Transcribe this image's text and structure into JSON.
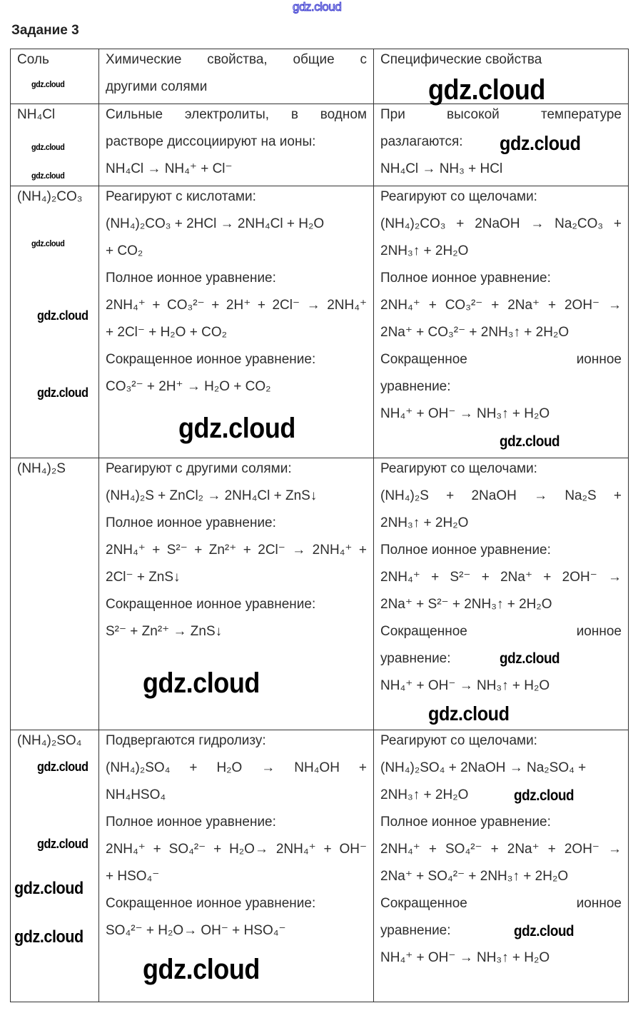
{
  "site_watermark": "gdz.cloud",
  "title": "Задание 3",
  "table": {
    "headers": [
      "Соль",
      "Химические свойства, общие с другими солями",
      "Специфические свойства"
    ],
    "header_lines": [
      [
        "Соль"
      ],
      [
        "Химические свойства, общие с",
        "другими солями"
      ],
      [
        "Специфические свойства"
      ]
    ],
    "rows": [
      {
        "salt": "NH₄Cl",
        "common": [
          "Сильные электролиты, в водном",
          "растворе диссоциируют на ионы:",
          "NH₄Cl → NH₄⁺ + Cl⁻"
        ],
        "specific": [
          "При высокой температуре",
          "разлагаются:",
          "NH₄Cl → NH₃ + HCl"
        ]
      },
      {
        "salt": "(NH₄)₂CO₃",
        "common": [
          "Реагируют с кислотами:",
          "(NH₄)₂CO₃ + 2HCl → 2NH₄Cl + H₂O",
          "+ CO₂",
          "Полное ионное уравнение:",
          "2NH₄⁺ + CO₃²⁻ + 2H⁺ + 2Cl⁻ → 2NH₄⁺",
          "+ 2Cl⁻ + H₂O + CO₂",
          "Сокращенное ионное уравнение:",
          "CO₃²⁻ + 2H⁺ → H₂O + CO₂"
        ],
        "specific": [
          "Реагируют со щелочами:",
          "(NH₄)₂CO₃ + 2NaOH → Na₂CO₃ +",
          "2NH₃↑ + 2H₂O",
          "Полное ионное уравнение:",
          "2NH₄⁺ + CO₃²⁻ + 2Na⁺ + 2OH⁻ →",
          "2Na⁺ + CO₃²⁻ + 2NH₃↑ + 2H₂O",
          "Сокращенное ионное",
          "уравнение:",
          "NH₄⁺ + OH⁻ → NH₃↑ + H₂O"
        ]
      },
      {
        "salt": "(NH₄)₂S",
        "common": [
          "Реагируют с другими солями:",
          "(NH₄)₂S + ZnCl₂ → 2NH₄Cl + ZnS↓",
          "Полное ионное уравнение:",
          "2NH₄⁺ + S²⁻ + Zn²⁺ + 2Cl⁻ → 2NH₄⁺ +",
          "2Cl⁻ + ZnS↓",
          "Сокращенное ионное уравнение:",
          "S²⁻ + Zn²⁺ → ZnS↓"
        ],
        "specific": [
          "Реагируют со щелочами:",
          "(NH₄)₂S + 2NaOH → Na₂S +",
          "2NH₃↑ + 2H₂O",
          "Полное ионное уравнение:",
          "2NH₄⁺ + S²⁻ + 2Na⁺ + 2OH⁻ →",
          "2Na⁺ + S²⁻ + 2NH₃↑ + 2H₂O",
          "Сокращенное ионное",
          "уравнение:",
          "NH₄⁺ + OH⁻ → NH₃↑ + H₂O"
        ]
      },
      {
        "salt": "(NH₄)₂SO₄",
        "common": [
          "Подвергаются гидролизу:",
          "(NH₄)₂SO₄ + H₂O → NH₄OH +",
          "NH₄HSO₄",
          "Полное ионное уравнение:",
          "2NH₄⁺ + SO₄²⁻ + H₂O→ 2NH₄⁺ + OH⁻",
          "+ HSO₄⁻",
          "Сокращенное ионное уравнение:",
          "SO₄²⁻ + H₂O→ OH⁻ + HSO₄⁻"
        ],
        "specific": [
          "Реагируют со щелочами:",
          "(NH₄)₂SO₄ + 2NaOH → Na₂SO₄ +",
          "2NH₃↑ + 2H₂O",
          "Полное ионное уравнение:",
          "2NH₄⁺ + SO₄²⁻ + 2Na⁺ + 2OH⁻ →",
          "2Na⁺ + SO₄²⁻ + 2NH₃↑ + 2H₂O",
          "Сокращенное ионное",
          "уравнение:",
          "NH₄⁺ + OH⁻ → NH₃↑ + H₂O"
        ]
      }
    ]
  }
}
